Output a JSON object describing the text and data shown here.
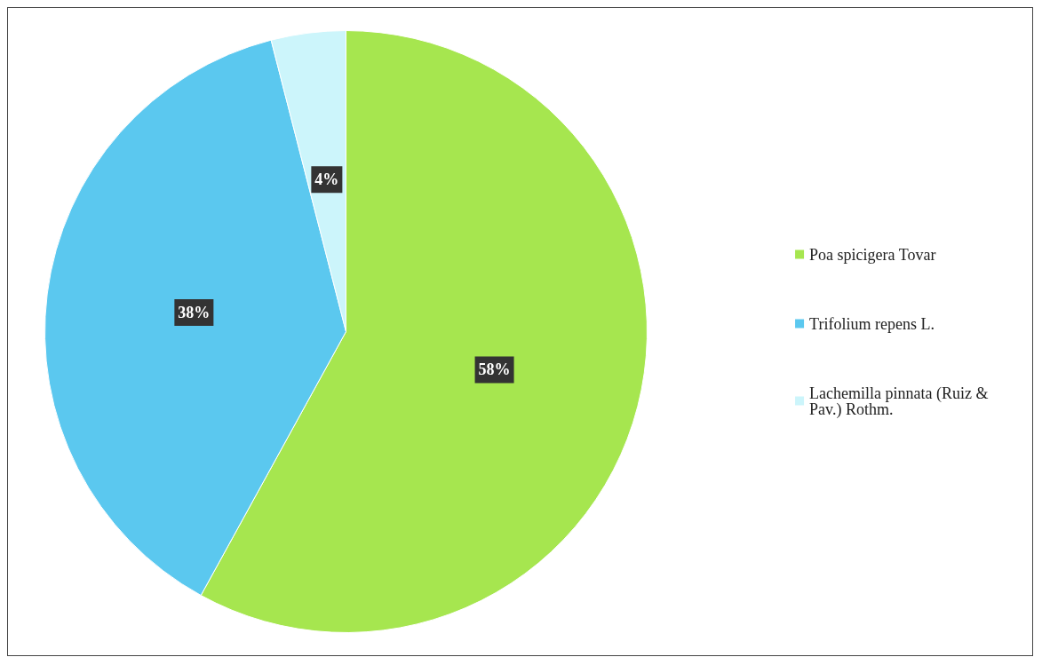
{
  "chart_data": {
    "type": "pie",
    "categories": [
      "Poa spicigera Tovar",
      "Trifolium repens L.",
      "Lachemilla pinnata (Ruiz & Pav.) Rothm."
    ],
    "values": [
      58,
      38,
      4
    ],
    "colors": [
      "#a6e64f",
      "#5bc8ef",
      "#ccf5fb"
    ],
    "value_labels": [
      "58%",
      "38%",
      "4%"
    ],
    "legend": "right"
  }
}
